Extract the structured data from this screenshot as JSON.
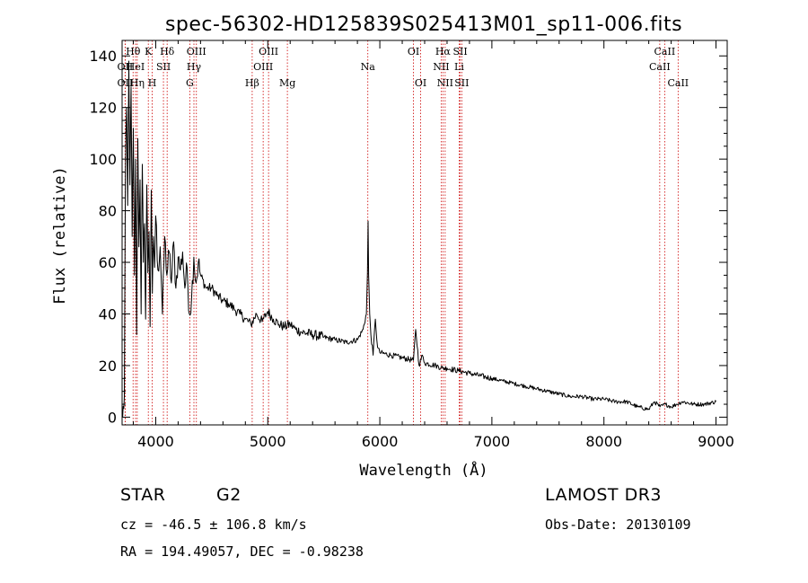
{
  "chart_data": {
    "type": "line",
    "title": "spec-56302-HD125839S025413M01_sp11-006.fits",
    "xlabel": "Wavelength (Å)",
    "ylabel": "Flux (relative)",
    "xlim": [
      3700,
      9100
    ],
    "ylim": [
      -3,
      146
    ],
    "xticks": [
      4000,
      5000,
      6000,
      7000,
      8000,
      9000
    ],
    "xtick_labels": [
      "4000",
      "5000",
      "6000",
      "7000",
      "8000",
      "9000"
    ],
    "yticks": [
      0,
      20,
      40,
      60,
      80,
      100,
      120,
      140
    ],
    "ytick_labels": [
      "0",
      "20",
      "40",
      "60",
      "80",
      "100",
      "120",
      "140"
    ],
    "series": [
      {
        "name": "flux",
        "x": [
          3705,
          3720,
          3730,
          3740,
          3750,
          3760,
          3770,
          3780,
          3790,
          3800,
          3810,
          3820,
          3830,
          3840,
          3850,
          3860,
          3870,
          3880,
          3890,
          3900,
          3910,
          3920,
          3930,
          3940,
          3950,
          3960,
          3970,
          3980,
          3990,
          4000,
          4020,
          4040,
          4060,
          4080,
          4100,
          4120,
          4140,
          4160,
          4180,
          4200,
          4220,
          4240,
          4260,
          4280,
          4300,
          4320,
          4340,
          4360,
          4380,
          4400,
          4450,
          4500,
          4550,
          4600,
          4650,
          4700,
          4750,
          4800,
          4850,
          4900,
          4950,
          5000,
          5050,
          5100,
          5150,
          5200,
          5250,
          5300,
          5400,
          5500,
          5600,
          5700,
          5800,
          5850,
          5880,
          5890,
          5895,
          5900,
          5910,
          5920,
          5940,
          5960,
          5980,
          6000,
          6100,
          6200,
          6300,
          6320,
          6350,
          6380,
          6400,
          6500,
          6560,
          6600,
          6700,
          6800,
          6900,
          7000,
          7100,
          7200,
          7300,
          7400,
          7500,
          7600,
          7700,
          7800,
          7900,
          8000,
          8100,
          8200,
          8300,
          8400,
          8450,
          8500,
          8550,
          8600,
          8650,
          8700,
          8800,
          8900,
          9000
        ],
        "y": [
          0,
          8,
          95,
          120,
          82,
          138,
          90,
          128,
          70,
          112,
          55,
          100,
          32,
          108,
          66,
          92,
          40,
          98,
          60,
          75,
          38,
          90,
          56,
          72,
          35,
          88,
          48,
          70,
          58,
          78,
          57,
          66,
          40,
          70,
          55,
          64,
          52,
          68,
          50,
          62,
          57,
          64,
          50,
          58,
          40,
          46,
          62,
          52,
          60,
          55,
          50,
          50,
          47,
          45,
          44,
          42,
          40,
          38,
          36,
          40,
          37,
          41,
          38,
          36,
          35,
          36,
          34,
          33,
          32,
          31,
          30,
          29,
          30,
          34,
          40,
          56,
          76,
          55,
          40,
          32,
          24,
          38,
          27,
          25,
          24,
          23,
          22,
          34,
          20,
          24,
          21,
          20,
          19,
          19,
          18,
          17,
          16,
          15,
          14,
          13,
          12,
          11,
          10,
          9,
          8,
          8,
          7,
          7,
          6,
          6,
          4,
          3,
          6,
          4,
          5,
          4,
          5,
          6,
          5,
          5,
          6
        ]
      }
    ],
    "spectral_lines": [
      {
        "name": "OII",
        "wavelength": 3727,
        "tier": 2
      },
      {
        "name": "OII",
        "wavelength": 3727,
        "tier": 4
      },
      {
        "name": "Hθ",
        "wavelength": 3798,
        "tier": 1
      },
      {
        "name": "HeI",
        "wavelength": 3820,
        "tier": 2
      },
      {
        "name": "Hη",
        "wavelength": 3835,
        "tier": 4
      },
      {
        "name": "K",
        "wavelength": 3934,
        "tier": 1
      },
      {
        "name": "SII",
        "wavelength": 4069,
        "tier": 2
      },
      {
        "name": "H",
        "wavelength": 3969,
        "tier": 4
      },
      {
        "name": "Hδ",
        "wavelength": 4102,
        "tier": 1
      },
      {
        "name": "OIII",
        "wavelength": 4363,
        "tier": 1
      },
      {
        "name": "Hγ",
        "wavelength": 4341,
        "tier": 2
      },
      {
        "name": "G",
        "wavelength": 4304,
        "tier": 4
      },
      {
        "name": "OIII",
        "wavelength": 5007,
        "tier": 1
      },
      {
        "name": "OIII",
        "wavelength": 4959,
        "tier": 2
      },
      {
        "name": "Hβ",
        "wavelength": 4861,
        "tier": 4
      },
      {
        "name": "Mg",
        "wavelength": 5175,
        "tier": 4
      },
      {
        "name": "Na",
        "wavelength": 5893,
        "tier": 2
      },
      {
        "name": "OI",
        "wavelength": 6300,
        "tier": 1
      },
      {
        "name": "OI",
        "wavelength": 6364,
        "tier": 4
      },
      {
        "name": "Hα",
        "wavelength": 6563,
        "tier": 1
      },
      {
        "name": "NII",
        "wavelength": 6548,
        "tier": 2
      },
      {
        "name": "NII",
        "wavelength": 6583,
        "tier": 4
      },
      {
        "name": "SII",
        "wavelength": 6717,
        "tier": 1
      },
      {
        "name": "Li",
        "wavelength": 6708,
        "tier": 2
      },
      {
        "name": "SII",
        "wavelength": 6731,
        "tier": 4
      },
      {
        "name": "CaII",
        "wavelength": 8542,
        "tier": 1
      },
      {
        "name": "CaII",
        "wavelength": 8498,
        "tier": 2
      },
      {
        "name": "CaII",
        "wavelength": 8662,
        "tier": 4
      }
    ],
    "line_color": "#000000",
    "marker_color": "#cc0000"
  },
  "info": {
    "object_type": "STAR",
    "subclass": "G2",
    "survey": "LAMOST DR3",
    "redshift": "cz = -46.5 ± 106.8 km/s",
    "obs_date": "Obs-Date: 20130109",
    "coords": "RA = 194.49057, DEC =  -0.98238"
  }
}
